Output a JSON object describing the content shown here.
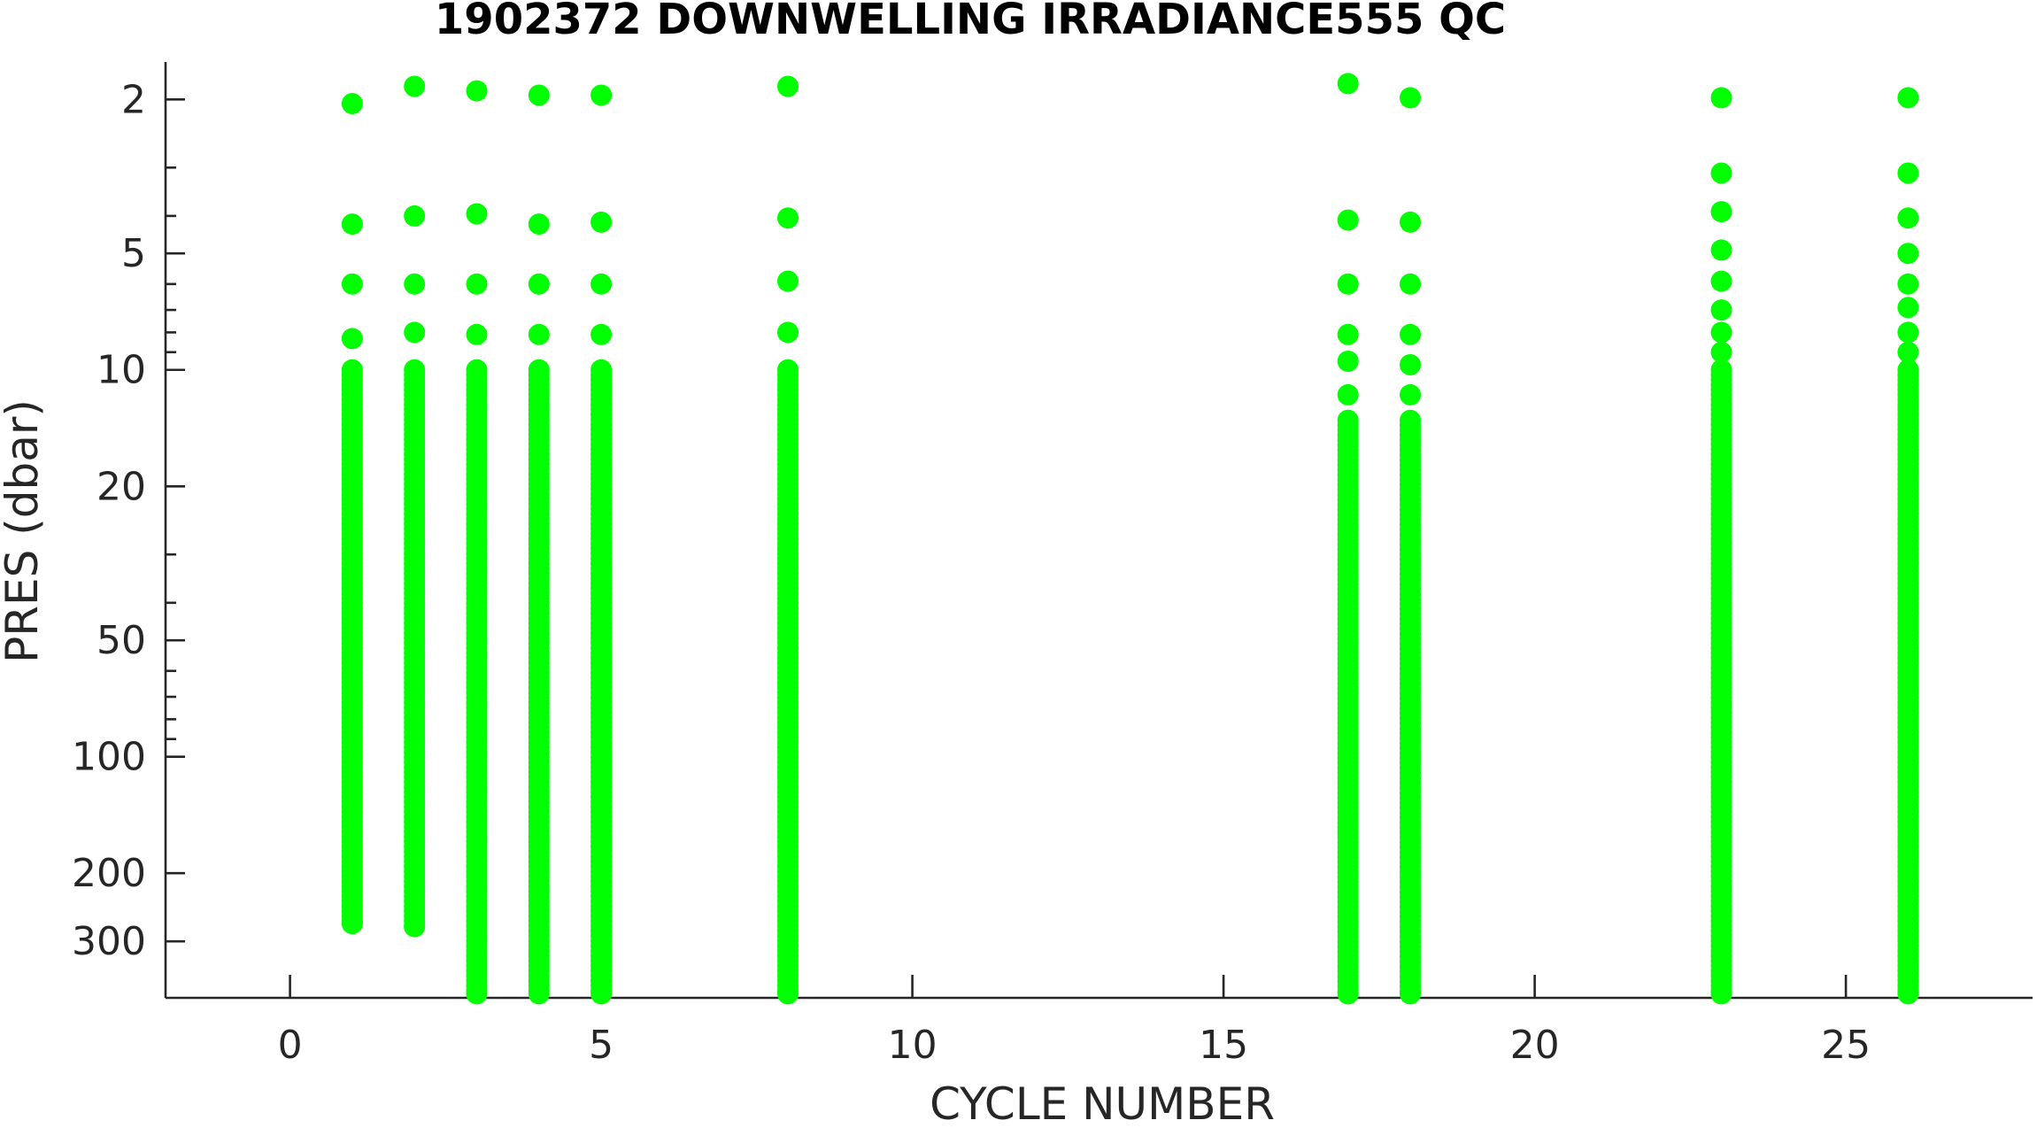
{
  "chart_data": {
    "type": "scatter",
    "title": "1902372  DOWNWELLING IRRADIANCE555 QC",
    "xlabel": "CYCLE NUMBER",
    "ylabel": "PRES (dbar)",
    "xlim": [
      -2,
      28
    ],
    "ylim": [
      1.6,
      420
    ],
    "y_scale": "log",
    "y_reversed": true,
    "grid": false,
    "legend": "none",
    "marker_color": "#00ff00",
    "x_ticks": [
      0,
      5,
      10,
      15,
      20,
      25
    ],
    "x_tick_labels": [
      "0",
      "5",
      "10",
      "15",
      "20",
      "25"
    ],
    "y_ticks": [
      2,
      5,
      10,
      20,
      50,
      100,
      200,
      300
    ],
    "y_tick_labels": [
      "2",
      "5",
      "10",
      "20",
      "50",
      "100",
      "200",
      "300"
    ],
    "y_minor_ticks": [
      3,
      4,
      6,
      7,
      8,
      9,
      30,
      40,
      60,
      70,
      80,
      90
    ],
    "profiles": [
      {
        "cycle": 1,
        "top_levels": [
          2.05,
          4.2,
          6.0,
          8.3
        ],
        "deep_start": 10,
        "deep_end": 270
      },
      {
        "cycle": 2,
        "top_levels": [
          1.85,
          4.0,
          6.0,
          8.0
        ],
        "deep_start": 10,
        "deep_end": 275
      },
      {
        "cycle": 3,
        "top_levels": [
          1.9,
          3.95,
          6.0,
          8.1
        ],
        "deep_start": 10,
        "deep_end": 410
      },
      {
        "cycle": 4,
        "top_levels": [
          1.95,
          4.2,
          6.0,
          8.1
        ],
        "deep_start": 10,
        "deep_end": 410
      },
      {
        "cycle": 5,
        "top_levels": [
          1.95,
          4.15,
          6.0,
          8.1
        ],
        "deep_start": 10,
        "deep_end": 410
      },
      {
        "cycle": 8,
        "top_levels": [
          1.85,
          4.05,
          5.9,
          8.0
        ],
        "deep_start": 10,
        "deep_end": 410
      },
      {
        "cycle": 17,
        "top_levels": [
          1.82,
          4.1,
          6.0,
          8.1,
          9.5,
          11.6
        ],
        "deep_start": 13.5,
        "deep_end": 410
      },
      {
        "cycle": 18,
        "top_levels": [
          1.98,
          4.15,
          6.0,
          8.1,
          9.7,
          11.6
        ],
        "deep_start": 13.5,
        "deep_end": 410
      },
      {
        "cycle": 23,
        "top_levels": [
          1.98,
          3.1,
          3.9,
          4.9,
          5.9,
          7.0,
          8.0,
          9.0
        ],
        "deep_start": 10,
        "deep_end": 410
      },
      {
        "cycle": 26,
        "top_levels": [
          1.98,
          3.1,
          4.05,
          5.0,
          6.0,
          6.9,
          8.0,
          9.0
        ],
        "deep_start": 10,
        "deep_end": 410
      }
    ]
  }
}
